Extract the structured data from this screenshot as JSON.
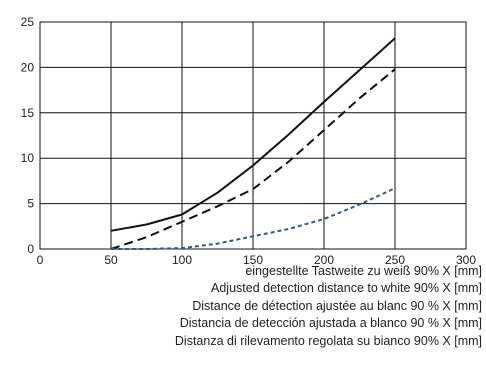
{
  "chart_data": {
    "type": "line",
    "xlim": [
      0,
      300
    ],
    "ylim": [
      0,
      25
    ],
    "x_ticks": [
      0,
      50,
      100,
      150,
      200,
      250,
      300
    ],
    "y_ticks": [
      0,
      5,
      10,
      15,
      20,
      25
    ],
    "grid": true,
    "xlabel_lines": [
      "eingestellte Tastweite zu weiß 90% X [mm]",
      "Adjusted detection distance to white 90% X [mm]",
      "Distance de détection ajustée au blanc 90 % X [mm]",
      "Distancia de detección ajustada a blanco 90 % X [mm]",
      "Distanza di rilevamento regolata su bianco 90% X [mm]"
    ],
    "series": [
      {
        "style": "solid",
        "color": "#111111",
        "x": [
          50,
          75,
          100,
          125,
          150,
          175,
          200,
          225,
          250
        ],
        "y": [
          2.0,
          2.7,
          3.8,
          6.2,
          9.2,
          12.6,
          16.2,
          19.7,
          23.2
        ]
      },
      {
        "style": "dashed",
        "color": "#111111",
        "x": [
          50,
          75,
          100,
          125,
          150,
          175,
          200,
          225,
          250
        ],
        "y": [
          0.0,
          1.3,
          3.0,
          4.7,
          6.6,
          9.6,
          13.1,
          16.6,
          19.8
        ]
      },
      {
        "style": "dotted",
        "color": "#3a5a7a",
        "x": [
          50,
          75,
          100,
          125,
          150,
          175,
          200,
          225,
          250
        ],
        "y": [
          0.0,
          0.0,
          0.1,
          0.6,
          1.4,
          2.2,
          3.3,
          4.9,
          6.7
        ]
      }
    ]
  }
}
